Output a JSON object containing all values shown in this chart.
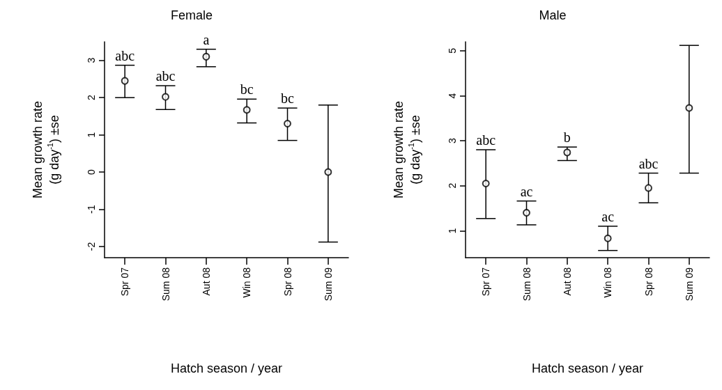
{
  "chart_data": [
    {
      "type": "scatter",
      "title": "Female",
      "xlabel": "Hatch season / year",
      "ylabel": "Mean growth rate\n(g day$^{-1}$) ±se",
      "categories": [
        "Spr 07",
        "Sum 08",
        "Aut 08",
        "Win 08",
        "Spr 08",
        "Sum 09"
      ],
      "values": [
        2.45,
        2.02,
        3.1,
        1.67,
        1.3,
        0
      ],
      "errors": [
        [
          2.0,
          2.87
        ],
        [
          1.68,
          2.32
        ],
        [
          2.83,
          3.3
        ],
        [
          1.32,
          1.96
        ],
        [
          0.85,
          1.72
        ],
        [
          -1.88,
          1.8
        ]
      ],
      "color": "#000000",
      "marker": "circle",
      "grid": false,
      "ylim": [
        -2.3,
        3.5
      ],
      "yticks": [
        -2,
        -1,
        0,
        1,
        2,
        3
      ],
      "annotations": [
        "abc",
        "abc",
        "a",
        "bc",
        "bc"
      ]
    },
    {
      "type": "scatter",
      "title": "Male",
      "xlabel": "Hatch season / year",
      "ylabel": "Mean growth rate\n(g day$^{-1}$) ±se",
      "categories": [
        "Spr 07",
        "Sum 08",
        "Aut 08",
        "Win 08",
        "Spr 08",
        "Sum 09"
      ],
      "values": [
        2.05,
        1.4,
        2.74,
        0.83,
        1.95,
        3.73
      ],
      "errors": [
        [
          1.27,
          2.8
        ],
        [
          1.13,
          1.66
        ],
        [
          2.56,
          2.86
        ],
        [
          0.56,
          1.1
        ],
        [
          1.62,
          2.28
        ],
        [
          2.28,
          5.12
        ]
      ],
      "color": "#000000",
      "marker": "circle",
      "grid": false,
      "ylim": [
        0.4,
        5.2
      ],
      "yticks": [
        1,
        2,
        3,
        4,
        5
      ],
      "annotations": [
        "abc",
        "ac",
        "b",
        "ac",
        "abc"
      ]
    }
  ]
}
